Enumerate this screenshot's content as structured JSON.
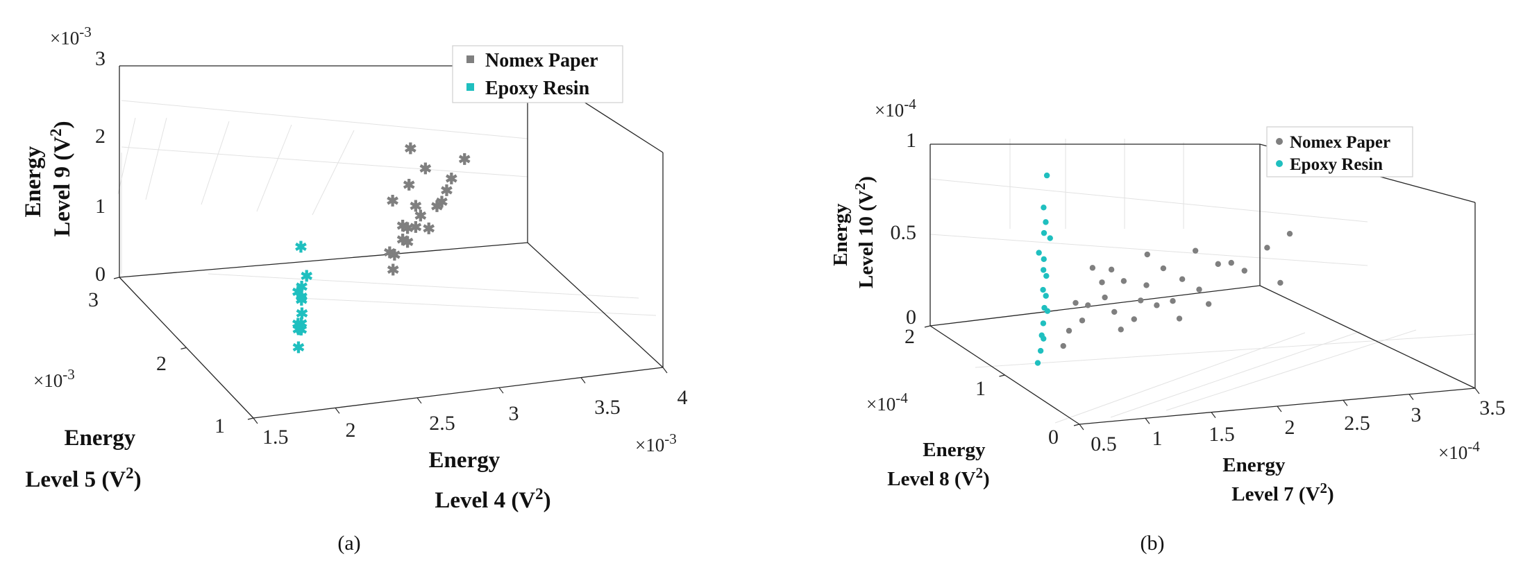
{
  "chart_data": [
    {
      "type": "scatter",
      "dimensions": 3,
      "caption": "(a)",
      "marker": "asterisk",
      "x_label": [
        "Energy",
        "Level 4 (V",
        "2",
        ")"
      ],
      "y_label": [
        "Energy",
        "Level 5 (V",
        "2",
        ")"
      ],
      "z_label": [
        "Energy",
        "Level 9 (V",
        "2",
        ")"
      ],
      "x_exponent": [
        "×10",
        "-3"
      ],
      "y_exponent": [
        "×10",
        "-3"
      ],
      "z_exponent": [
        "×10",
        "-3"
      ],
      "xlim": [
        1.5,
        4
      ],
      "ylim": [
        1,
        3
      ],
      "zlim": [
        0,
        3
      ],
      "x_ticks": [
        1.5,
        2,
        2.5,
        3,
        3.5,
        4
      ],
      "x_tick_labels": [
        "1.5",
        "2",
        "2.5",
        "3",
        "3.5",
        "4"
      ],
      "y_ticks": [
        1,
        2,
        3
      ],
      "y_tick_labels": [
        "1",
        "2",
        "3"
      ],
      "z_ticks": [
        0,
        1,
        2,
        3
      ],
      "z_tick_labels": [
        "0",
        "1",
        "2",
        "3"
      ],
      "legend_position": "top-right",
      "series": [
        {
          "name": "Nomex Paper",
          "color": "#7f7f7f",
          "x": [
            2.7,
            2.75,
            2.8,
            2.85,
            2.9,
            2.95,
            3.0,
            2.8,
            2.9,
            3.1,
            3.2,
            3.3,
            2.7,
            2.8,
            2.9,
            3.0,
            3.15,
            2.95,
            3.05,
            2.85
          ],
          "y": [
            1.85,
            1.95,
            1.95,
            2.0,
            2.0,
            2.05,
            2.05,
            2.1,
            2.1,
            2.1,
            2.2,
            2.25,
            1.9,
            1.95,
            2.0,
            2.1,
            2.15,
            2.2,
            2.05,
            2.0
          ],
          "z": [
            0.9,
            1.0,
            1.2,
            1.1,
            1.3,
            1.4,
            1.2,
            1.6,
            1.8,
            1.5,
            1.7,
            1.9,
            1.1,
            1.4,
            1.6,
            2.0,
            1.6,
            2.2,
            1.5,
            1.3
          ]
        },
        {
          "name": "Epoxy Resin",
          "color": "#1fbfbf",
          "x": [
            2.0,
            2.02,
            2.05,
            2.03,
            2.06,
            2.04,
            2.08,
            2.05,
            2.07,
            2.03,
            2.01,
            2.06
          ],
          "y": [
            1.55,
            1.6,
            1.62,
            1.58,
            1.65,
            1.6,
            1.7,
            1.55,
            1.68,
            1.63,
            1.58,
            1.66
          ],
          "z": [
            0.3,
            0.5,
            0.7,
            0.6,
            0.9,
            1.1,
            0.8,
            1.3,
            0.4,
            1.0,
            0.6,
            1.6
          ]
        }
      ]
    },
    {
      "type": "scatter",
      "dimensions": 3,
      "caption": "(b)",
      "marker": "dot",
      "x_label": [
        "Energy",
        "Level 7 (V",
        "2",
        ")"
      ],
      "y_label": [
        "Energy",
        "Level 8 (V",
        "2",
        ")"
      ],
      "z_label": [
        "Energy",
        "Level 10 (V",
        "2",
        ")"
      ],
      "x_exponent": [
        "×10",
        "-4"
      ],
      "y_exponent": [
        "×10",
        "-4"
      ],
      "z_exponent": [
        "×10",
        "-4"
      ],
      "xlim": [
        0.5,
        3.5
      ],
      "ylim": [
        0,
        2
      ],
      "zlim": [
        0,
        1
      ],
      "x_ticks": [
        0.5,
        1,
        1.5,
        2,
        2.5,
        3,
        3.5
      ],
      "x_tick_labels": [
        "0.5",
        "1",
        "1.5",
        "2",
        "2.5",
        "3",
        "3.5"
      ],
      "y_ticks": [
        0,
        1,
        2
      ],
      "y_tick_labels": [
        "0",
        "1",
        "2"
      ],
      "z_ticks": [
        0,
        0.5,
        1
      ],
      "z_tick_labels": [
        "0",
        "0.5",
        "1"
      ],
      "legend_position": "top-right",
      "series": [
        {
          "name": "Nomex Paper",
          "color": "#7f7f7f",
          "x": [
            1.0,
            1.1,
            1.2,
            1.3,
            1.4,
            1.5,
            1.6,
            1.7,
            1.8,
            1.9,
            2.0,
            2.1,
            2.2,
            2.4,
            2.6,
            2.8,
            3.0,
            1.25,
            1.45,
            1.65,
            1.85,
            2.05,
            2.3,
            2.5,
            1.35,
            1.55,
            1.75,
            1.15,
            2.2,
            2.9
          ],
          "y": [
            1.1,
            1.2,
            1.2,
            1.3,
            1.25,
            1.3,
            1.35,
            1.3,
            1.4,
            1.35,
            1.4,
            1.45,
            1.4,
            1.5,
            1.5,
            1.55,
            1.6,
            1.15,
            1.25,
            1.3,
            1.35,
            1.4,
            1.45,
            1.5,
            1.2,
            1.3,
            1.3,
            1.2,
            1.45,
            1.55
          ],
          "z": [
            0.1,
            0.15,
            0.2,
            0.25,
            0.3,
            0.2,
            0.35,
            0.25,
            0.3,
            0.4,
            0.2,
            0.3,
            0.25,
            0.35,
            0.3,
            0.4,
            0.45,
            0.5,
            0.45,
            0.15,
            0.2,
            0.1,
            0.15,
            0.35,
            0.4,
            0.1,
            0.5,
            0.3,
            0.45,
            0.2
          ]
        },
        {
          "name": "Epoxy Resin",
          "color": "#1fbfbf",
          "x": [
            0.75,
            0.8,
            0.85,
            0.78,
            0.82,
            0.88,
            0.8,
            0.84,
            0.79,
            0.86,
            0.81,
            0.83,
            0.77,
            0.9,
            0.82,
            0.85,
            0.8,
            0.87
          ],
          "y": [
            1.0,
            1.05,
            1.1,
            1.0,
            1.05,
            1.1,
            1.0,
            1.05,
            1.0,
            1.08,
            1.03,
            1.06,
            1.02,
            1.1,
            1.04,
            1.07,
            1.01,
            1.09
          ],
          "z": [
            0.05,
            0.1,
            0.15,
            0.2,
            0.25,
            0.3,
            0.35,
            0.4,
            0.45,
            0.5,
            0.55,
            0.6,
            0.65,
            0.7,
            0.75,
            0.8,
            0.9,
            1.05
          ]
        }
      ]
    }
  ]
}
